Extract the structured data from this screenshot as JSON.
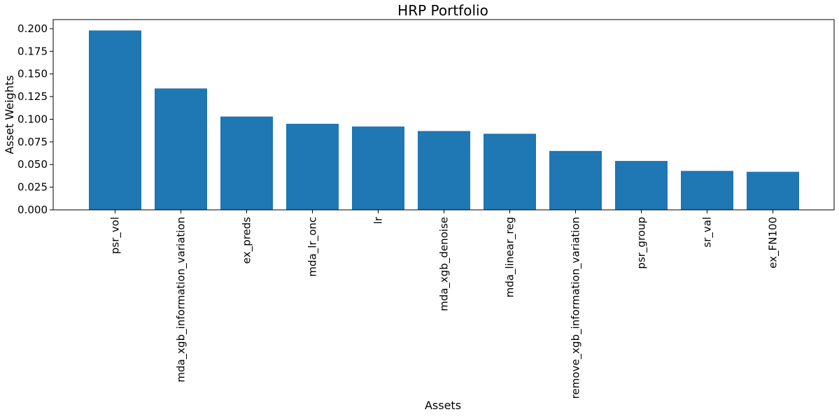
{
  "chart_data": {
    "type": "bar",
    "title": "HRP Portfolio",
    "xlabel": "Assets",
    "ylabel": "Asset Weights",
    "categories": [
      "psr_vol",
      "mda_xgb_information_variation",
      "ex_preds",
      "mda_lr_onc",
      "lr",
      "mda_xgb_denoise",
      "mda_linear_reg",
      "remove_xgb_information_variation",
      "psr_group",
      "sr_val",
      "ex_FN100"
    ],
    "values": [
      0.198,
      0.134,
      0.103,
      0.095,
      0.092,
      0.087,
      0.084,
      0.065,
      0.054,
      0.043,
      0.042
    ],
    "ylim": [
      0,
      0.21
    ],
    "yticks": [
      "0.000",
      "0.025",
      "0.050",
      "0.075",
      "0.100",
      "0.125",
      "0.150",
      "0.175",
      "0.200"
    ],
    "grid": false,
    "legend": "none",
    "colors": {
      "bar": "#1f77b4",
      "axis": "#000000"
    }
  }
}
